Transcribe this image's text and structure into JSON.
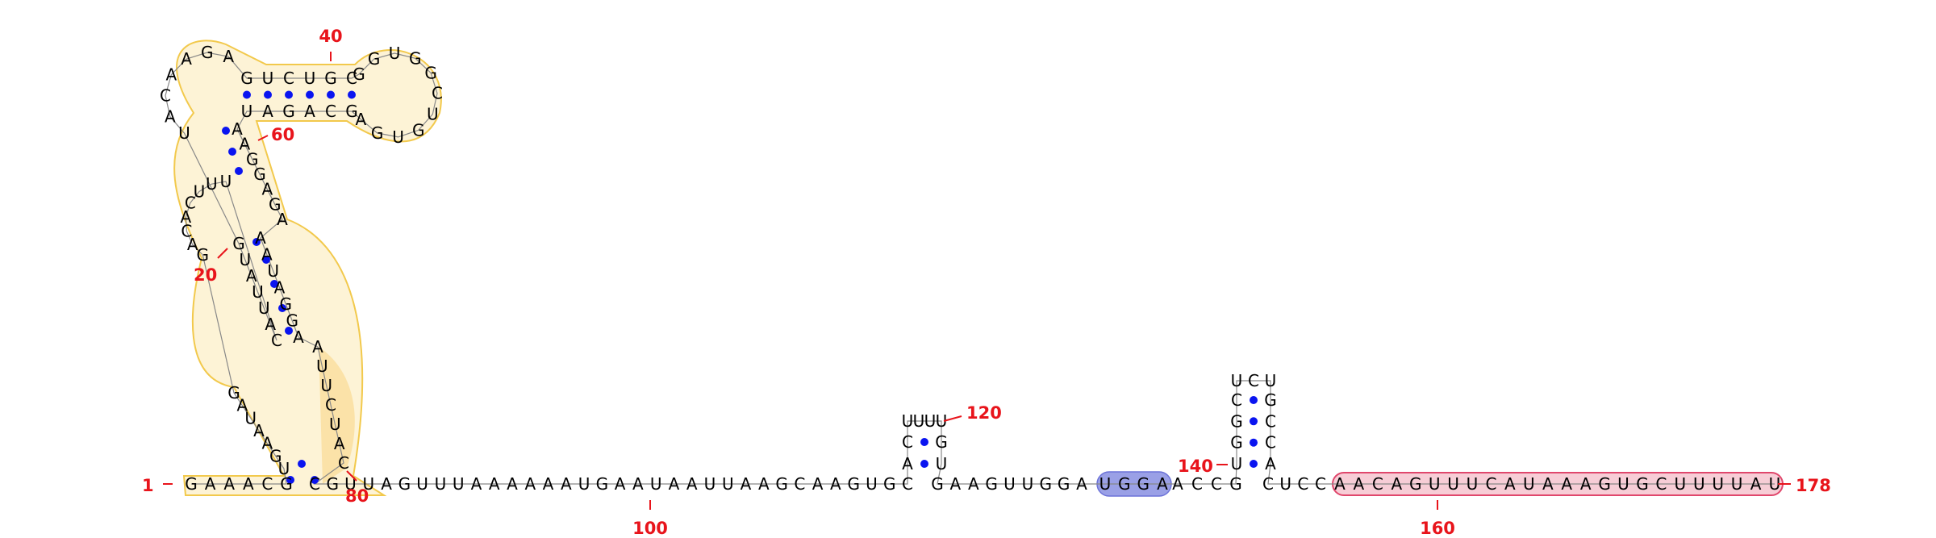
{
  "diagram": {
    "colors": {
      "nucleotide": "#000000",
      "pair_dot": "#0a14f0",
      "numbers": "#e8141b",
      "highlight_outline": "#f2c94c",
      "highlight_fill": "#fdf3d6",
      "highlight_fill_strong": "#fbe2a8",
      "blue_highlight": "#9aa0e6",
      "blue_highlight_stroke": "#6c72d8",
      "pink_highlight": "#f7cdd6",
      "pink_highlight_stroke": "#e0476c",
      "backbone": "#888888"
    },
    "segments": {
      "s5prime": "GAAACG",
      "h1_up_a": "UGAAUAG",
      "h1_up_b": "CAUUAUG",
      "loop20": "GACACUUU",
      "apical_left": "UACAAGA",
      "top_strand": "GUCUGC",
      "right_loop": "GGUGGCUGUGA",
      "bottom_strand": "GCAGAU",
      "h_inner_a": "AAGGAGA",
      "h_inner_b": "AAUAGGA",
      "h_right_down": "AUUCUAC",
      "s3_long": "CGUUAGUUUAAAAAAUGAAUAAUUAAGCAAGUGC",
      "hp1_left": "AC",
      "hp1_loop": "UUUU",
      "hp1_right": "GU",
      "mid": "GAAGUUGGA",
      "blue": "UGGA",
      "after_blue": "ACCG",
      "hp2_left": "UGGC",
      "hp2_loop": "UCU",
      "hp2_right": "GCCA",
      "before_pink": "CUCC",
      "pink": "AACAGUUUCAUAAAGUGCUUUUAU"
    },
    "numbers": {
      "n1": "1",
      "n20": "20",
      "n40": "40",
      "n60": "60",
      "n80": "80",
      "n100": "100",
      "n120": "120",
      "n140": "140",
      "n160": "160",
      "n178": "178"
    }
  }
}
